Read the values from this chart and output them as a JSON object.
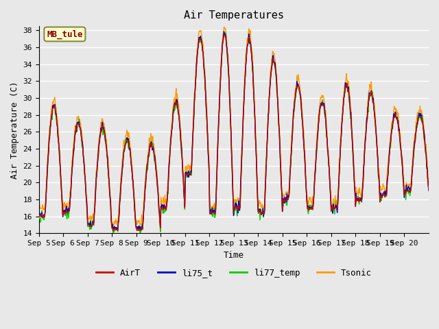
{
  "title": "Air Temperatures",
  "xlabel": "Time",
  "ylabel": "Air Temperature (C)",
  "ylim": [
    14,
    38.5
  ],
  "yticks": [
    14,
    16,
    18,
    20,
    22,
    24,
    26,
    28,
    30,
    32,
    34,
    36,
    38
  ],
  "xtick_labels": [
    "Sep 5",
    "Sep 6",
    "Sep 7",
    "Sep 8",
    "Sep 9",
    "Sep 10",
    "Sep 11",
    "Sep 12",
    "Sep 13",
    "Sep 14",
    "Sep 15",
    "Sep 16",
    "Sep 17",
    "Sep 18",
    "Sep 19",
    "Sep 20"
  ],
  "series_colors": {
    "AirT": "#cc0000",
    "li75_t": "#0000cc",
    "li77_temp": "#00cc00",
    "Tsonic": "#ff9900"
  },
  "annotation_text": "MB_tule",
  "annotation_facecolor": "#ffffcc",
  "annotation_edgecolor": "#888844",
  "annotation_textcolor": "#880000",
  "bg_color": "#e8e8e8",
  "plot_bg_color": "#e8e8e8",
  "grid_color": "#ffffff",
  "n_days": 16,
  "samples_per_day": 48,
  "font_family": "monospace",
  "daily_peaks": [
    29,
    27,
    26.5,
    25,
    24.5,
    29.5,
    37,
    37.5,
    37,
    34.5,
    31.5,
    29.5,
    31.5,
    30.5,
    28,
    28
  ],
  "daily_mins": [
    16,
    16.5,
    15,
    14.5,
    14.5,
    17,
    21,
    16.5,
    17,
    16.5,
    18,
    17,
    17,
    18,
    18.5,
    19
  ]
}
